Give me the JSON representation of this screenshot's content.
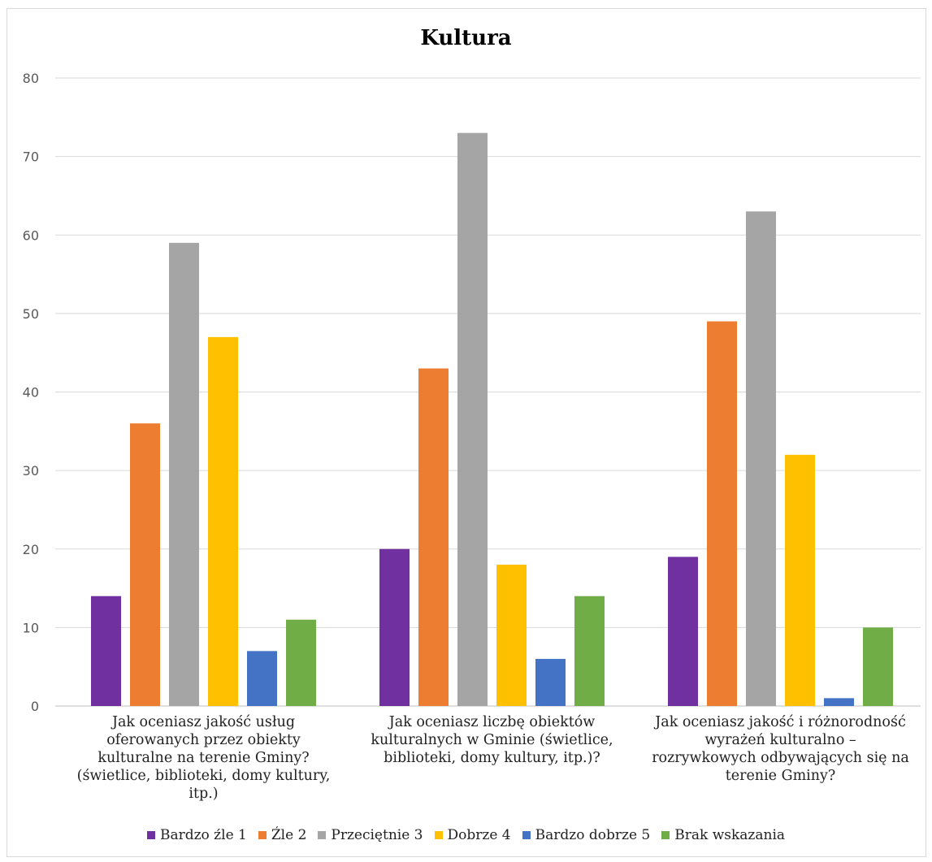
{
  "chart_data": {
    "type": "bar",
    "title": "Kultura",
    "categories": [
      "Jak oceniasz jakość usług oferowanych przez  obiekty kulturalne na terenie Gminy? (świetlice, biblioteki, domy kultury, itp.)",
      "Jak oceniasz liczbę obiektów kulturalnych w Gminie (świetlice, biblioteki, domy kultury, itp.)?",
      "Jak oceniasz jakość i różnorodność wyrażeń kulturalno – rozrywkowych odbywających się na terenie Gminy?"
    ],
    "series": [
      {
        "name": "Bardzo źle 1",
        "color": "#7030a0",
        "values": [
          14,
          20,
          19
        ]
      },
      {
        "name": "Źle 2",
        "color": "#ed7d31",
        "values": [
          36,
          43,
          49
        ]
      },
      {
        "name": "Przeciętnie 3",
        "color": "#a5a5a5",
        "values": [
          59,
          73,
          63
        ]
      },
      {
        "name": "Dobrze 4",
        "color": "#ffc000",
        "values": [
          47,
          18,
          32
        ]
      },
      {
        "name": "Bardzo dobrze 5",
        "color": "#4472c4",
        "values": [
          7,
          6,
          1
        ]
      },
      {
        "name": "Brak wskazania",
        "color": "#70ad47",
        "values": [
          11,
          14,
          10
        ]
      }
    ],
    "ylim": [
      0,
      80
    ],
    "yticks": [
      0,
      10,
      20,
      30,
      40,
      50,
      60,
      70,
      80
    ],
    "grid": true,
    "legend": "bottom"
  }
}
